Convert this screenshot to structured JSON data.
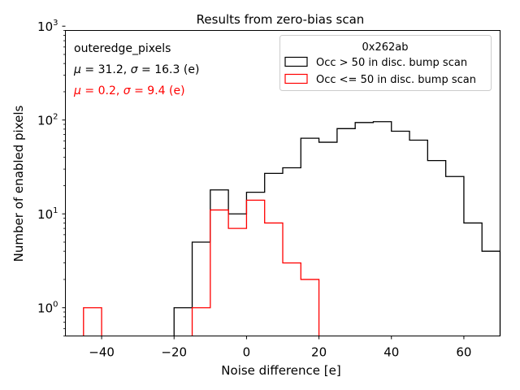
{
  "chart_data": {
    "type": "histogram",
    "title": "Results from zero-bias scan",
    "xlabel": "Noise difference [e]",
    "ylabel": "Number of enabled pixels",
    "yscale": "log",
    "xlim": [
      -50,
      70
    ],
    "ylim": [
      0.5,
      900
    ],
    "xticks": [
      -40,
      -20,
      0,
      20,
      40,
      60
    ],
    "xtick_labels": [
      "−40",
      "−20",
      "0",
      "20",
      "40",
      "60"
    ],
    "yticks": [
      1,
      10,
      100,
      1000
    ],
    "ytick_exponents": [
      "0",
      "1",
      "2",
      "3"
    ],
    "ytick_base": "10",
    "bin_edges": [
      -45,
      -40,
      -35,
      -30,
      -25,
      -20,
      -15,
      -10,
      -5,
      0,
      5,
      10,
      15,
      20,
      25,
      30,
      35,
      40,
      45,
      50,
      55,
      60,
      65,
      70
    ],
    "series": [
      {
        "name": "Occ > 50 in disc. bump scan",
        "color": "#000000",
        "counts": [
          0,
          0,
          0,
          0,
          0,
          1,
          5,
          18,
          10,
          17,
          27,
          31,
          64,
          58,
          81,
          94,
          96,
          76,
          61,
          37,
          25,
          8,
          4
        ]
      },
      {
        "name": "Occ <= 50 in disc. bump scan",
        "color": "#ff0000",
        "counts": [
          1,
          0,
          0,
          0,
          0,
          0,
          1,
          11,
          7,
          14,
          8,
          3,
          2,
          0,
          0,
          0,
          0,
          0,
          0,
          0,
          0,
          0,
          0
        ]
      }
    ],
    "annotations": {
      "region": "outeredge_pixels",
      "stats_black_prefix": "μ = 31.2, σ = 16.3 (e)",
      "stats_red_prefix": "μ = 0.2, σ = 9.4 (e)",
      "black_color": "#000000",
      "red_color": "#ff0000"
    },
    "legend": {
      "title": "0x262ab",
      "location": "upper right"
    }
  }
}
